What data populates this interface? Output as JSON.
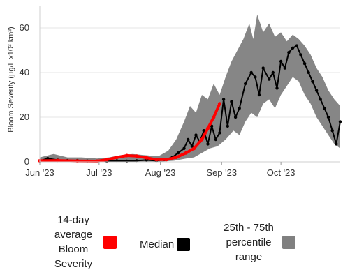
{
  "chart_data": {
    "type": "line",
    "ylabel": "Bloom Severity (µg/L x10³ km²)",
    "ylim": [
      0,
      70
    ],
    "yticks": [
      0,
      20,
      40,
      60
    ],
    "x_range": [
      "2023-06-01",
      "2023-10-31"
    ],
    "xticks": [
      {
        "date": "2023-06-01",
        "label": "Jun '23"
      },
      {
        "date": "2023-07-01",
        "label": "Jul '23"
      },
      {
        "date": "2023-08-01",
        "label": "Aug '23"
      },
      {
        "date": "2023-09-01",
        "label": "Sep '23"
      },
      {
        "date": "2023-10-01",
        "label": "Oct '23"
      }
    ],
    "grid": "horizontal",
    "legend_position": "bottom",
    "series": [
      {
        "name": "14-day average Bloom Severity",
        "kind": "line",
        "color": "#ff0000",
        "points": [
          [
            "2023-06-01",
            0.5
          ],
          [
            "2023-06-10",
            0.6
          ],
          [
            "2023-06-20",
            0.4
          ],
          [
            "2023-06-30",
            0.3
          ],
          [
            "2023-07-05",
            1.0
          ],
          [
            "2023-07-10",
            2.0
          ],
          [
            "2023-07-15",
            2.8
          ],
          [
            "2023-07-20",
            2.6
          ],
          [
            "2023-07-25",
            1.8
          ],
          [
            "2023-07-30",
            1.0
          ],
          [
            "2023-08-04",
            1.0
          ],
          [
            "2023-08-09",
            2.0
          ],
          [
            "2023-08-14",
            4.0
          ],
          [
            "2023-08-18",
            6.0
          ],
          [
            "2023-08-22",
            10.0
          ],
          [
            "2023-08-25",
            15.0
          ],
          [
            "2023-08-28",
            20.0
          ],
          [
            "2023-08-31",
            26.0
          ]
        ]
      },
      {
        "name": "Median",
        "kind": "line-markers",
        "color": "#000000",
        "points": [
          [
            "2023-06-01",
            0.5
          ],
          [
            "2023-06-05",
            1.5
          ],
          [
            "2023-06-10",
            0.8
          ],
          [
            "2023-06-15",
            0.6
          ],
          [
            "2023-06-20",
            0.6
          ],
          [
            "2023-06-25",
            0.4
          ],
          [
            "2023-06-30",
            0.3
          ],
          [
            "2023-07-05",
            0.2
          ],
          [
            "2023-07-10",
            0.5
          ],
          [
            "2023-07-15",
            0.3
          ],
          [
            "2023-07-20",
            0.5
          ],
          [
            "2023-07-25",
            0.8
          ],
          [
            "2023-07-30",
            0.5
          ],
          [
            "2023-08-03",
            1.0
          ],
          [
            "2023-08-07",
            2.0
          ],
          [
            "2023-08-10",
            4.0
          ],
          [
            "2023-08-13",
            6.0
          ],
          [
            "2023-08-15",
            10.0
          ],
          [
            "2023-08-17",
            7.0
          ],
          [
            "2023-08-19",
            12.0
          ],
          [
            "2023-08-21",
            9.0
          ],
          [
            "2023-08-23",
            14.0
          ],
          [
            "2023-08-25",
            8.0
          ],
          [
            "2023-08-27",
            16.0
          ],
          [
            "2023-08-29",
            10.0
          ],
          [
            "2023-08-31",
            13.0
          ],
          [
            "2023-09-02",
            28.0
          ],
          [
            "2023-09-04",
            16.0
          ],
          [
            "2023-09-06",
            27.0
          ],
          [
            "2023-09-08",
            20.0
          ],
          [
            "2023-09-10",
            24.0
          ],
          [
            "2023-09-13",
            35.0
          ],
          [
            "2023-09-16",
            40.0
          ],
          [
            "2023-09-18",
            38.0
          ],
          [
            "2023-09-20",
            30.0
          ],
          [
            "2023-09-22",
            42.0
          ],
          [
            "2023-09-25",
            37.0
          ],
          [
            "2023-09-27",
            40.0
          ],
          [
            "2023-09-29",
            33.0
          ],
          [
            "2023-10-01",
            45.0
          ],
          [
            "2023-10-03",
            42.0
          ],
          [
            "2023-10-05",
            49.0
          ],
          [
            "2023-10-07",
            51.0
          ],
          [
            "2023-10-09",
            52.0
          ],
          [
            "2023-10-11",
            48.0
          ],
          [
            "2023-10-13",
            44.0
          ],
          [
            "2023-10-15",
            40.0
          ],
          [
            "2023-10-17",
            36.0
          ],
          [
            "2023-10-19",
            32.0
          ],
          [
            "2023-10-21",
            28.0
          ],
          [
            "2023-10-23",
            24.0
          ],
          [
            "2023-10-25",
            20.0
          ],
          [
            "2023-10-27",
            14.0
          ],
          [
            "2023-10-29",
            8.0
          ],
          [
            "2023-10-31",
            18.0
          ]
        ]
      },
      {
        "name": "25th - 75th percentile range",
        "kind": "band",
        "color": "#808080",
        "upper": [
          [
            "2023-06-01",
            2.0
          ],
          [
            "2023-06-08",
            3.5
          ],
          [
            "2023-06-15",
            2.0
          ],
          [
            "2023-06-22",
            2.0
          ],
          [
            "2023-06-30",
            1.5
          ],
          [
            "2023-07-06",
            2.0
          ],
          [
            "2023-07-12",
            3.0
          ],
          [
            "2023-07-18",
            3.5
          ],
          [
            "2023-07-24",
            3.0
          ],
          [
            "2023-07-31",
            2.5
          ],
          [
            "2023-08-05",
            5.0
          ],
          [
            "2023-08-09",
            10.0
          ],
          [
            "2023-08-13",
            18.0
          ],
          [
            "2023-08-16",
            25.0
          ],
          [
            "2023-08-19",
            22.0
          ],
          [
            "2023-08-22",
            30.0
          ],
          [
            "2023-08-25",
            28.0
          ],
          [
            "2023-08-28",
            35.0
          ],
          [
            "2023-08-31",
            30.0
          ],
          [
            "2023-09-03",
            38.0
          ],
          [
            "2023-09-06",
            45.0
          ],
          [
            "2023-09-09",
            50.0
          ],
          [
            "2023-09-12",
            55.0
          ],
          [
            "2023-09-15",
            62.0
          ],
          [
            "2023-09-17",
            55.0
          ],
          [
            "2023-09-19",
            66.0
          ],
          [
            "2023-09-22",
            58.0
          ],
          [
            "2023-09-25",
            62.0
          ],
          [
            "2023-09-28",
            56.0
          ],
          [
            "2023-10-01",
            58.0
          ],
          [
            "2023-10-04",
            54.0
          ],
          [
            "2023-10-07",
            57.0
          ],
          [
            "2023-10-10",
            55.0
          ],
          [
            "2023-10-13",
            52.0
          ],
          [
            "2023-10-16",
            48.0
          ],
          [
            "2023-10-19",
            42.0
          ],
          [
            "2023-10-22",
            38.0
          ],
          [
            "2023-10-25",
            32.0
          ],
          [
            "2023-10-28",
            28.0
          ],
          [
            "2023-10-31",
            25.0
          ]
        ],
        "lower": [
          [
            "2023-06-01",
            0.0
          ],
          [
            "2023-06-15",
            0.0
          ],
          [
            "2023-06-30",
            0.0
          ],
          [
            "2023-07-15",
            0.0
          ],
          [
            "2023-07-31",
            0.0
          ],
          [
            "2023-08-08",
            0.5
          ],
          [
            "2023-08-14",
            1.5
          ],
          [
            "2023-08-18",
            2.0
          ],
          [
            "2023-08-22",
            4.0
          ],
          [
            "2023-08-26",
            6.0
          ],
          [
            "2023-08-30",
            7.0
          ],
          [
            "2023-09-03",
            10.0
          ],
          [
            "2023-09-07",
            14.0
          ],
          [
            "2023-09-10",
            12.0
          ],
          [
            "2023-09-13",
            18.0
          ],
          [
            "2023-09-16",
            22.0
          ],
          [
            "2023-09-19",
            20.0
          ],
          [
            "2023-09-22",
            26.0
          ],
          [
            "2023-09-25",
            28.0
          ],
          [
            "2023-09-28",
            24.0
          ],
          [
            "2023-10-01",
            30.0
          ],
          [
            "2023-10-04",
            34.0
          ],
          [
            "2023-10-07",
            38.0
          ],
          [
            "2023-10-10",
            36.0
          ],
          [
            "2023-10-13",
            30.0
          ],
          [
            "2023-10-16",
            26.0
          ],
          [
            "2023-10-19",
            20.0
          ],
          [
            "2023-10-22",
            16.0
          ],
          [
            "2023-10-25",
            12.0
          ],
          [
            "2023-10-28",
            8.0
          ],
          [
            "2023-10-31",
            6.0
          ]
        ]
      }
    ]
  },
  "legend": {
    "avg_label": "14-day average Bloom Severity",
    "avg_lines": [
      "14-day",
      "average",
      "Bloom",
      "Severity"
    ],
    "median_label": "Median",
    "range_label": "25th - 75th percentile range",
    "range_lines": [
      "25th - 75th",
      "percentile",
      "range"
    ],
    "avg_color": "#ff0000",
    "median_color": "#000000",
    "range_color": "#808080"
  }
}
